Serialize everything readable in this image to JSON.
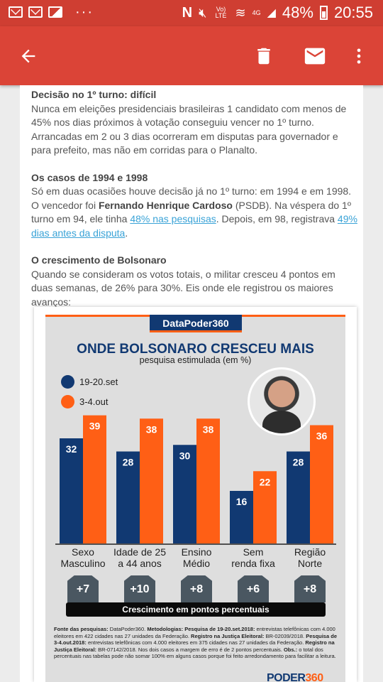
{
  "status_bar": {
    "network": "Vo) LTE",
    "signal": "4G",
    "battery": "48%",
    "time": "20:55",
    "overflow": "···"
  },
  "app_bar": {
    "icons": [
      "arrow-back-icon",
      "trash-icon",
      "mail-icon",
      "more-vert-icon"
    ]
  },
  "article": {
    "s1_title": "Decisão no 1º turno: difícil",
    "s1_text": "Nunca em eleições presidenciais brasileiras 1 candidato com menos de 45% nos dias próximos à votação conseguiu vencer no 1º turno. Arrancadas em 2 ou 3 dias ocorreram em disputas para governador e para prefeito, mas não em corridas para o Planalto.",
    "s2_title": "Os casos de 1994 e 1998",
    "s2_text_a": "Só em duas ocasiões houve decisão já no 1º turno: em 1994 e em 1998. O vencedor foi ",
    "s2_bold": "Fernando Henrique Cardoso",
    "s2_text_b": " (PSDB). Na véspera do 1º turno em 94, ele tinha ",
    "s2_link1": "48% nas pesquisas",
    "s2_text_c": ". Depois, em 98, registrava ",
    "s2_link2": "49% dias antes da disputa",
    "s2_text_d": ".",
    "s3_title": "O crescimento de Bolsonaro",
    "s3_text": "Quando se consideram os votos totais, o militar cresceu 4 pontos em duas semanas, de 26% para 30%. Eis onde ele registrou os maiores avanços:"
  },
  "infographic": {
    "brand": "DataPoder360",
    "title": "ONDE BOLSONARO CRESCEU MAIS",
    "subtitle": "pesquisa estimulada (em %)",
    "growth_label": "Crescimento em pontos percentuais",
    "deltas": [
      "+7",
      "+10",
      "+8",
      "+6",
      "+8"
    ],
    "footnote": {
      "l1": "Fonte das pesquisas:",
      "t1": " DataPoder360. ",
      "l2": "Metodologias: Pesquisa de 19-20.set.2018:",
      "t2": " entrevistas telefônicas com 4.000 eleitores em 422 cidades nas 27 unidades da Federação. ",
      "l3": "Registro na Justiça Eleitoral:",
      "t3": " BR-02039/2018. ",
      "l4": "Pesquisa de 3-4.out.2018:",
      "t4": " entrevistas telefônicas com 4.000 eleitores em 375 cidades nas 27 unidades da Federação. ",
      "l5": "Registro na Justiça Eleitoral:",
      "t5": " BR-07142/2018. Nos dois casos a margem de erro é de 2 pontos percentuais. ",
      "l6": "Obs.:",
      "t6": " o total dos percentuais nas tabelas pode não somar 100% em alguns casos porque foi feito arredondamento para facilitar a leitura."
    },
    "logo_a": "PODER",
    "logo_b": "360"
  },
  "chart_data": {
    "type": "bar",
    "title": "ONDE BOLSONARO CRESCEU MAIS",
    "subtitle": "pesquisa estimulada (em %)",
    "categories": [
      "Sexo Masculino",
      "Idade de 25 a 44 anos",
      "Ensino Médio",
      "Sem renda fixa",
      "Região Norte"
    ],
    "category_lines": [
      [
        "Sexo",
        "Masculino"
      ],
      [
        "Idade de 25",
        "a 44 anos"
      ],
      [
        "Ensino",
        "Médio"
      ],
      [
        "Sem",
        "renda fixa"
      ],
      [
        "Região",
        "Norte"
      ]
    ],
    "series": [
      {
        "name": "19-20.set",
        "color": "#113972",
        "values": [
          32,
          28,
          30,
          16,
          28
        ]
      },
      {
        "name": "3-4.out",
        "color": "#ff5f15",
        "values": [
          39,
          38,
          38,
          22,
          36
        ]
      }
    ],
    "ylim": [
      0,
      40
    ],
    "legend": "top-left"
  }
}
